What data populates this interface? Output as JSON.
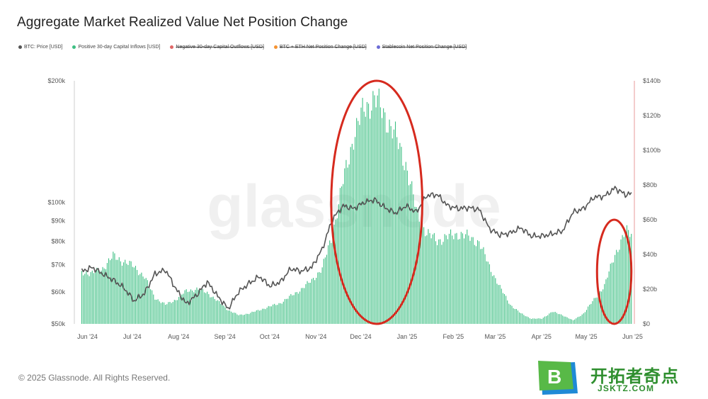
{
  "title": "Aggregate Market Realized Value Net Position Change",
  "legend": [
    {
      "label": "BTC: Price [USD]",
      "color": "#555555",
      "active": true
    },
    {
      "label": "Positive 30-day Capital Inflows [USD]",
      "color": "#3dbf83",
      "active": true
    },
    {
      "label": "Negative 30-day Capital Outflows [USD]",
      "color": "#e06666",
      "active": false
    },
    {
      "label": "BTC + ETH Net Position Change [USD]",
      "color": "#f59331",
      "active": false
    },
    {
      "label": "Stablecoin Net Position Change [USD]",
      "color": "#6b6bd6",
      "active": false
    }
  ],
  "watermark": "glassnode",
  "footer": "© 2025 Glassnode. All Rights Reserved.",
  "logo": {
    "text": "开拓者奇点",
    "sub": "JSKTZ.COM",
    "letter": "B"
  },
  "chart_data": {
    "type": "line",
    "x_ticks": [
      "Jun '24",
      "Jul '24",
      "Aug '24",
      "Sep '24",
      "Oct '24",
      "Nov '24",
      "Dec '24",
      "Jan '25",
      "Feb '25",
      "Mar '25",
      "Apr '25",
      "May '25",
      "Jun '25"
    ],
    "y_left": {
      "scale": "log",
      "range": [
        50000,
        200000
      ],
      "ticks": [
        50000,
        60000,
        70000,
        80000,
        90000,
        100000,
        200000
      ],
      "tick_labels": [
        "$50k",
        "$60k",
        "$70k",
        "$80k",
        "$90k",
        "$100k",
        "$200k"
      ]
    },
    "y_right": {
      "scale": "linear",
      "range": [
        0,
        140
      ],
      "unit": "billion USD",
      "ticks": [
        0,
        20,
        40,
        60,
        80,
        100,
        120,
        140
      ],
      "tick_labels": [
        "$0",
        "$20b",
        "$40b",
        "$60b",
        "$80b",
        "$100b",
        "$120b",
        "$140b"
      ]
    },
    "series": [
      {
        "name": "Positive 30-day Capital Inflows [USD]",
        "type": "bar",
        "axis": "right",
        "color": "#3dbf83",
        "points": [
          [
            "2024-06-01",
            30
          ],
          [
            "2024-06-08",
            29
          ],
          [
            "2024-06-15",
            32
          ],
          [
            "2024-06-22",
            39
          ],
          [
            "2024-06-29",
            36
          ],
          [
            "2024-07-06",
            33
          ],
          [
            "2024-07-13",
            27
          ],
          [
            "2024-07-20",
            15
          ],
          [
            "2024-07-27",
            11
          ],
          [
            "2024-08-03",
            14
          ],
          [
            "2024-08-10",
            19
          ],
          [
            "2024-08-17",
            20
          ],
          [
            "2024-08-24",
            18
          ],
          [
            "2024-08-31",
            13
          ],
          [
            "2024-09-07",
            8
          ],
          [
            "2024-09-14",
            5
          ],
          [
            "2024-09-21",
            6
          ],
          [
            "2024-09-28",
            8
          ],
          [
            "2024-10-05",
            10
          ],
          [
            "2024-10-12",
            12
          ],
          [
            "2024-10-19",
            16
          ],
          [
            "2024-10-26",
            20
          ],
          [
            "2024-11-02",
            25
          ],
          [
            "2024-11-09",
            32
          ],
          [
            "2024-11-16",
            52
          ],
          [
            "2024-11-23",
            82
          ],
          [
            "2024-11-30",
            108
          ],
          [
            "2024-12-07",
            124
          ],
          [
            "2024-12-14",
            130
          ],
          [
            "2024-12-21",
            120
          ],
          [
            "2024-12-28",
            108
          ],
          [
            "2025-01-04",
            92
          ],
          [
            "2025-01-11",
            65
          ],
          [
            "2025-01-18",
            52
          ],
          [
            "2025-01-25",
            48
          ],
          [
            "2025-02-01",
            50
          ],
          [
            "2025-02-08",
            52
          ],
          [
            "2025-02-15",
            50
          ],
          [
            "2025-02-22",
            47
          ],
          [
            "2025-03-01",
            33
          ],
          [
            "2025-03-08",
            21
          ],
          [
            "2025-03-15",
            11
          ],
          [
            "2025-03-22",
            6
          ],
          [
            "2025-03-29",
            3
          ],
          [
            "2025-04-05",
            3
          ],
          [
            "2025-04-12",
            7
          ],
          [
            "2025-04-19",
            5
          ],
          [
            "2025-04-26",
            2
          ],
          [
            "2025-05-03",
            6
          ],
          [
            "2025-05-10",
            14
          ],
          [
            "2025-05-17",
            22
          ],
          [
            "2025-05-24",
            40
          ],
          [
            "2025-05-31",
            53
          ],
          [
            "2025-06-04",
            52
          ]
        ]
      },
      {
        "name": "BTC: Price [USD]",
        "type": "line",
        "axis": "left",
        "color": "#555555",
        "points": [
          [
            "2024-06-01",
            67500
          ],
          [
            "2024-06-08",
            69000
          ],
          [
            "2024-06-15",
            66500
          ],
          [
            "2024-06-22",
            64200
          ],
          [
            "2024-06-29",
            61500
          ],
          [
            "2024-07-06",
            57000
          ],
          [
            "2024-07-13",
            59500
          ],
          [
            "2024-07-20",
            66500
          ],
          [
            "2024-07-27",
            68000
          ],
          [
            "2024-08-03",
            61000
          ],
          [
            "2024-08-10",
            56000
          ],
          [
            "2024-08-17",
            59000
          ],
          [
            "2024-08-24",
            63500
          ],
          [
            "2024-08-31",
            58500
          ],
          [
            "2024-09-07",
            54500
          ],
          [
            "2024-09-14",
            60000
          ],
          [
            "2024-09-21",
            63000
          ],
          [
            "2024-09-28",
            65500
          ],
          [
            "2024-10-05",
            62000
          ],
          [
            "2024-10-12",
            63500
          ],
          [
            "2024-10-19",
            68500
          ],
          [
            "2024-10-26",
            67500
          ],
          [
            "2024-11-02",
            69000
          ],
          [
            "2024-11-09",
            76500
          ],
          [
            "2024-11-16",
            91000
          ],
          [
            "2024-11-23",
            98000
          ],
          [
            "2024-11-30",
            96500
          ],
          [
            "2024-12-07",
            100000
          ],
          [
            "2024-12-14",
            101500
          ],
          [
            "2024-12-21",
            97000
          ],
          [
            "2024-12-28",
            94000
          ],
          [
            "2025-01-04",
            98000
          ],
          [
            "2025-01-11",
            94500
          ],
          [
            "2025-01-18",
            104000
          ],
          [
            "2025-01-25",
            104500
          ],
          [
            "2025-02-01",
            98000
          ],
          [
            "2025-02-08",
            96500
          ],
          [
            "2025-02-15",
            97000
          ],
          [
            "2025-02-22",
            96000
          ],
          [
            "2025-03-01",
            86000
          ],
          [
            "2025-03-08",
            83000
          ],
          [
            "2025-03-15",
            84000
          ],
          [
            "2025-03-22",
            86500
          ],
          [
            "2025-03-29",
            82500
          ],
          [
            "2025-04-05",
            82500
          ],
          [
            "2025-04-12",
            83500
          ],
          [
            "2025-04-19",
            85000
          ],
          [
            "2025-04-26",
            94500
          ],
          [
            "2025-05-03",
            96500
          ],
          [
            "2025-05-10",
            103000
          ],
          [
            "2025-05-17",
            103500
          ],
          [
            "2025-05-24",
            108500
          ],
          [
            "2025-05-31",
            104500
          ],
          [
            "2025-06-04",
            105000
          ]
        ]
      }
    ],
    "highlights": [
      {
        "shape": "ellipse",
        "color": "#d62a1e",
        "x_range": [
          "2024-11-15",
          "2025-01-15"
        ],
        "y_right_range": [
          0,
          140
        ]
      },
      {
        "shape": "ellipse",
        "color": "#d62a1e",
        "x_range": [
          "2025-05-12",
          "2025-06-04"
        ],
        "y_right_range": [
          0,
          60
        ]
      }
    ],
    "grid": false,
    "legend_position": "top-left"
  }
}
